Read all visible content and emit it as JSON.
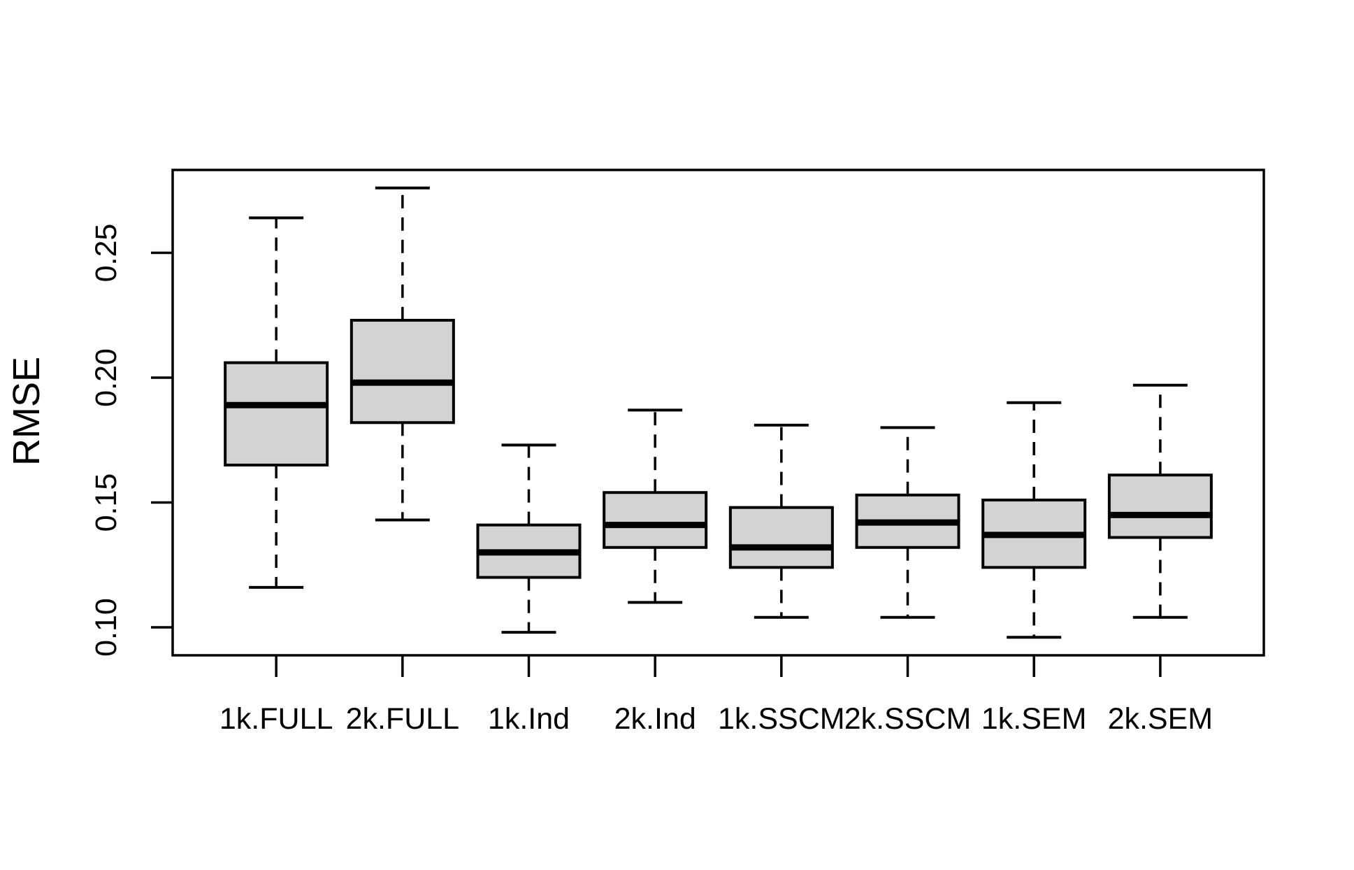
{
  "chart_data": {
    "type": "boxplot",
    "title": "",
    "xlabel": "",
    "ylabel": "RMSE",
    "categories": [
      "1k.FULL",
      "2k.FULL",
      "1k.Ind",
      "2k.Ind",
      "1k.SSCM",
      "2k.SSCM",
      "1k.SEM",
      "2k.SEM"
    ],
    "boxes": [
      {
        "label": "1k.FULL",
        "whisker_low": 0.116,
        "q1": 0.165,
        "median": 0.189,
        "q3": 0.206,
        "whisker_high": 0.264
      },
      {
        "label": "2k.FULL",
        "whisker_low": 0.143,
        "q1": 0.182,
        "median": 0.198,
        "q3": 0.223,
        "whisker_high": 0.276
      },
      {
        "label": "1k.Ind",
        "whisker_low": 0.098,
        "q1": 0.12,
        "median": 0.13,
        "q3": 0.141,
        "whisker_high": 0.173
      },
      {
        "label": "2k.Ind",
        "whisker_low": 0.11,
        "q1": 0.132,
        "median": 0.141,
        "q3": 0.154,
        "whisker_high": 0.187
      },
      {
        "label": "1k.SSCM",
        "whisker_low": 0.104,
        "q1": 0.124,
        "median": 0.132,
        "q3": 0.148,
        "whisker_high": 0.181
      },
      {
        "label": "2k.SSCM",
        "whisker_low": 0.104,
        "q1": 0.132,
        "median": 0.142,
        "q3": 0.153,
        "whisker_high": 0.18
      },
      {
        "label": "1k.SEM",
        "whisker_low": 0.096,
        "q1": 0.124,
        "median": 0.137,
        "q3": 0.151,
        "whisker_high": 0.19
      },
      {
        "label": "2k.SEM",
        "whisker_low": 0.104,
        "q1": 0.136,
        "median": 0.145,
        "q3": 0.161,
        "whisker_high": 0.197
      }
    ],
    "yticks": [
      "0.10",
      "0.15",
      "0.20",
      "0.25"
    ],
    "ylim": [
      0.0888,
      0.2832
    ],
    "xlim": [
      0.18,
      8.82
    ],
    "grid": false,
    "legend": null,
    "outliers": [],
    "colors": {
      "box_fill": "#D3D3D3",
      "line": "#000000",
      "background": "#FFFFFF"
    }
  }
}
